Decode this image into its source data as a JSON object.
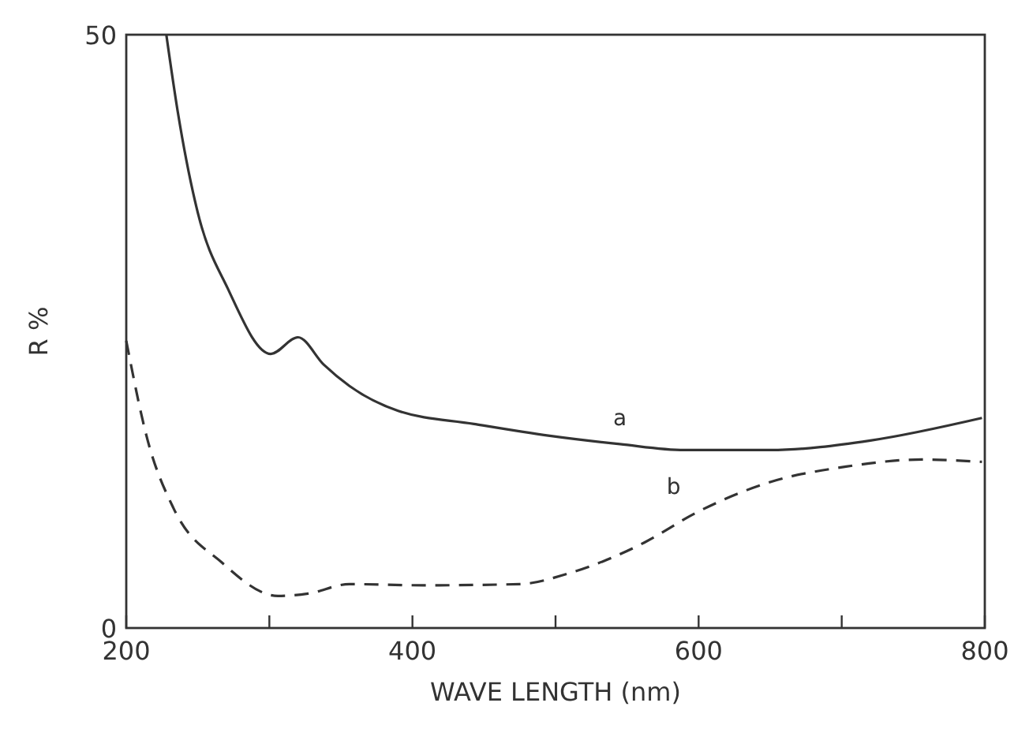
{
  "chart_data": {
    "type": "line",
    "xlabel": "WAVE LENGTH (nm)",
    "ylabel": "R %",
    "xlim": [
      200,
      800
    ],
    "ylim": [
      0,
      50
    ],
    "xticks": [
      200,
      {
        "value": 300,
        "label": null
      },
      400,
      {
        "value": 500,
        "label": null
      },
      600,
      {
        "value": 700,
        "label": null
      },
      800
    ],
    "yticks": [
      0,
      50
    ],
    "grid": false,
    "marker": "none",
    "series": [
      {
        "name": "a",
        "color": "#333333",
        "line_style": "solid",
        "x": [
          228,
          236,
          250,
          271,
          301,
          320,
          338,
          356,
          390,
          443,
          496,
          545,
          590,
          650,
          720,
          798
        ],
        "values": [
          50,
          43.5,
          35,
          28.6,
          23.1,
          24.5,
          22.2,
          20.4,
          18.3,
          17.2,
          16.2,
          15.5,
          15,
          15,
          15.8,
          17.7
        ]
      },
      {
        "name": "b",
        "color": "#333333",
        "line_style": "dashed",
        "x": [
          200,
          215,
          233,
          267,
          306,
          327,
          356,
          408,
          475,
          509,
          562,
          598,
          650,
          703,
          756,
          798
        ],
        "values": [
          24.2,
          15.8,
          10.1,
          5.5,
          2.7,
          2.9,
          3.7,
          3.6,
          3.7,
          4.6,
          7.2,
          9.7,
          12.3,
          13.6,
          14.2,
          14
        ]
      }
    ]
  }
}
